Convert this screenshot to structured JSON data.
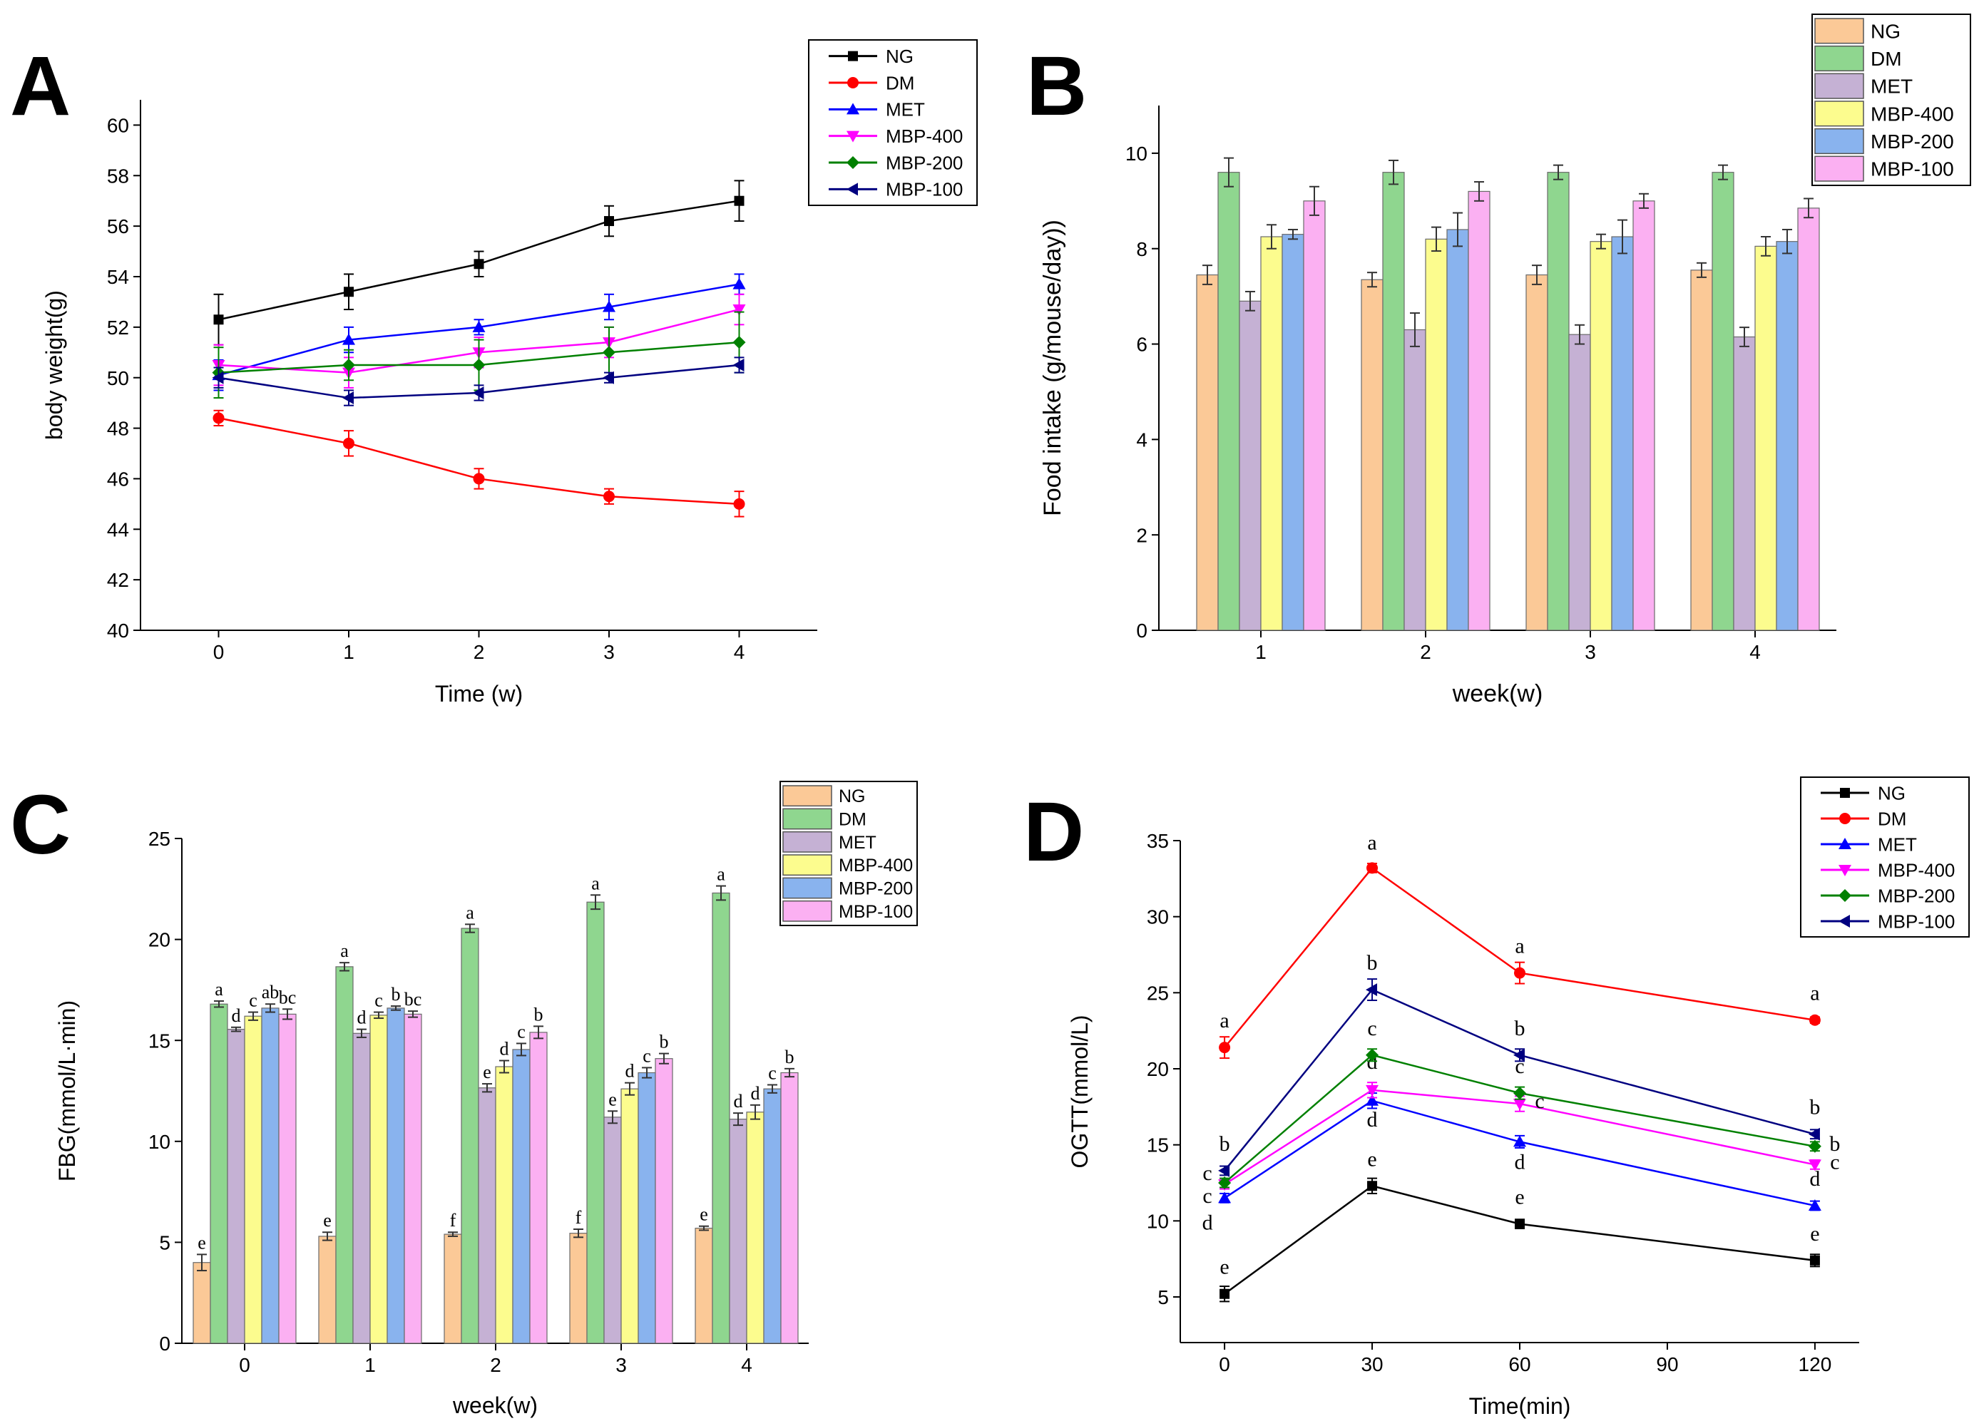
{
  "figure": {
    "panel_letters": [
      "A",
      "B",
      "C",
      "D"
    ]
  },
  "colors": {
    "line": {
      "NG": "#000000",
      "DM": "#ff0000",
      "MET": "#0000ff",
      "MBP-400": "#ff00ff",
      "MBP-200": "#008000",
      "MBP-100": "#000080"
    },
    "bar": {
      "NG": "#fbc997",
      "DM": "#8fd68f",
      "MET": "#c5b1d4",
      "MBP-400": "#fcfc8e",
      "MBP-200": "#89b3ee",
      "MBP-100": "#fbb0f2"
    }
  },
  "chart_data": [
    {
      "id": "A",
      "type": "line",
      "title": "",
      "xlabel": "Time (w)",
      "ylabel": "body weight(g)",
      "x": [
        0,
        1,
        2,
        3,
        4
      ],
      "xticks": [
        "0",
        "1",
        "2",
        "3",
        "4"
      ],
      "xlim": [
        -0.6,
        4.6
      ],
      "ylim": [
        40,
        61
      ],
      "yticks": [
        "40",
        "42",
        "44",
        "46",
        "48",
        "50",
        "52",
        "54",
        "56",
        "58",
        "60"
      ],
      "legend_position": "top-right",
      "series": [
        {
          "name": "NG",
          "marker": "square",
          "values": [
            52.3,
            53.4,
            54.5,
            56.2,
            57.0
          ],
          "errors": [
            1.0,
            0.7,
            0.5,
            0.6,
            0.8
          ]
        },
        {
          "name": "DM",
          "marker": "circle",
          "values": [
            48.4,
            47.4,
            46.0,
            45.3,
            45.0
          ],
          "errors": [
            0.3,
            0.5,
            0.4,
            0.3,
            0.5
          ]
        },
        {
          "name": "MET",
          "marker": "triangle-up",
          "values": [
            50.1,
            51.5,
            52.0,
            52.8,
            53.7
          ],
          "errors": [
            0.6,
            0.5,
            0.3,
            0.5,
            0.4
          ]
        },
        {
          "name": "MBP-400",
          "marker": "triangle-down",
          "values": [
            50.5,
            50.2,
            51.0,
            51.4,
            52.7
          ],
          "errors": [
            0.8,
            0.6,
            0.6,
            0.6,
            0.6
          ]
        },
        {
          "name": "MBP-200",
          "marker": "diamond",
          "values": [
            50.2,
            50.5,
            50.5,
            51.0,
            51.4
          ],
          "errors": [
            1.0,
            0.6,
            1.0,
            1.0,
            1.2
          ]
        },
        {
          "name": "MBP-100",
          "marker": "triangle-left",
          "values": [
            50.0,
            49.2,
            49.4,
            50.0,
            50.5
          ],
          "errors": [
            0.4,
            0.3,
            0.3,
            0.2,
            0.3
          ]
        }
      ]
    },
    {
      "id": "B",
      "type": "bar",
      "title": "",
      "xlabel": "week(w)",
      "ylabel": "Food intake (g/mouse/day))",
      "categories": [
        "1",
        "2",
        "3",
        "4"
      ],
      "ylim": [
        0,
        11
      ],
      "yticks": [
        "0",
        "2",
        "4",
        "6",
        "8",
        "10"
      ],
      "legend_position": "top-right",
      "series": [
        {
          "name": "NG",
          "values": [
            7.45,
            7.35,
            7.45,
            7.55
          ],
          "errors": [
            0.2,
            0.15,
            0.2,
            0.15
          ]
        },
        {
          "name": "DM",
          "values": [
            9.6,
            9.6,
            9.6,
            9.6
          ],
          "errors": [
            0.3,
            0.25,
            0.15,
            0.15
          ]
        },
        {
          "name": "MET",
          "values": [
            6.9,
            6.3,
            6.2,
            6.15
          ],
          "errors": [
            0.2,
            0.35,
            0.2,
            0.2
          ]
        },
        {
          "name": "MBP-400",
          "values": [
            8.25,
            8.2,
            8.15,
            8.05
          ],
          "errors": [
            0.25,
            0.25,
            0.15,
            0.2
          ]
        },
        {
          "name": "MBP-200",
          "values": [
            8.3,
            8.4,
            8.25,
            8.15
          ],
          "errors": [
            0.1,
            0.35,
            0.35,
            0.25
          ]
        },
        {
          "name": "MBP-100",
          "values": [
            9.0,
            9.2,
            9.0,
            8.85
          ],
          "errors": [
            0.3,
            0.2,
            0.15,
            0.2
          ]
        }
      ]
    },
    {
      "id": "C",
      "type": "bar",
      "title": "",
      "xlabel": "week(w)",
      "ylabel": "FBG(mmol/L·min)",
      "categories": [
        "0",
        "1",
        "2",
        "3",
        "4"
      ],
      "ylim": [
        0,
        25
      ],
      "yticks": [
        "0",
        "5",
        "10",
        "15",
        "20",
        "25"
      ],
      "legend_position": "top-right",
      "series": [
        {
          "name": "NG",
          "values": [
            4.0,
            5.3,
            5.4,
            5.45,
            5.7
          ],
          "errors": [
            0.4,
            0.2,
            0.1,
            0.2,
            0.1
          ],
          "labels": [
            "e",
            "e",
            "f",
            "f",
            "e"
          ]
        },
        {
          "name": "DM",
          "values": [
            16.8,
            18.65,
            20.55,
            21.85,
            22.3
          ],
          "errors": [
            0.15,
            0.2,
            0.2,
            0.35,
            0.35
          ],
          "labels": [
            "a",
            "a",
            "a",
            "a",
            "a"
          ]
        },
        {
          "name": "MET",
          "values": [
            15.55,
            15.35,
            12.65,
            11.2,
            11.1
          ],
          "errors": [
            0.1,
            0.2,
            0.2,
            0.3,
            0.3
          ],
          "labels": [
            "d",
            "d",
            "e",
            "e",
            "d"
          ]
        },
        {
          "name": "MBP-400",
          "values": [
            16.2,
            16.25,
            13.7,
            12.6,
            11.45
          ],
          "errors": [
            0.2,
            0.15,
            0.3,
            0.3,
            0.35
          ],
          "labels": [
            "c",
            "c",
            "d",
            "d",
            "d"
          ]
        },
        {
          "name": "MBP-200",
          "values": [
            16.6,
            16.6,
            14.55,
            13.4,
            12.6
          ],
          "errors": [
            0.2,
            0.1,
            0.3,
            0.25,
            0.2
          ],
          "labels": [
            "ab",
            "b",
            "c",
            "c",
            "c"
          ]
        },
        {
          "name": "MBP-100",
          "values": [
            16.3,
            16.3,
            15.4,
            14.1,
            13.4
          ],
          "errors": [
            0.25,
            0.15,
            0.3,
            0.25,
            0.2
          ],
          "labels": [
            "bc",
            "bc",
            "b",
            "b",
            "b"
          ]
        }
      ]
    },
    {
      "id": "D",
      "type": "line",
      "title": "",
      "xlabel": "Time(min)",
      "ylabel": "OGTT(mmol/L)",
      "x": [
        0,
        30,
        60,
        120
      ],
      "xticks": [
        "0",
        "30",
        "60",
        "90",
        "120"
      ],
      "xtick_values": [
        0,
        30,
        60,
        90,
        120
      ],
      "xlim": [
        -9,
        129
      ],
      "ylim": [
        2,
        35
      ],
      "yticks": [
        "5",
        "10",
        "15",
        "20",
        "25",
        "30",
        "35"
      ],
      "ytick_values": [
        5,
        10,
        15,
        20,
        25,
        30,
        35
      ],
      "legend_position": "top-right",
      "series": [
        {
          "name": "NG",
          "marker": "square",
          "values": [
            5.2,
            12.3,
            9.8,
            7.4
          ],
          "errors": [
            0.5,
            0.5,
            0.3,
            0.4
          ],
          "labels": [
            "e",
            "e",
            "e",
            "e"
          ]
        },
        {
          "name": "DM",
          "marker": "circle",
          "values": [
            21.4,
            33.2,
            26.3,
            23.2
          ],
          "errors": [
            0.7,
            0.3,
            0.7,
            0.2
          ],
          "labels": [
            "a",
            "a",
            "a",
            "a"
          ]
        },
        {
          "name": "MET",
          "marker": "triangle-up",
          "values": [
            11.5,
            17.9,
            15.2,
            11.0
          ],
          "errors": [
            0.3,
            0.5,
            0.4,
            0.3
          ],
          "labels": [
            "d",
            "d",
            "d",
            "d"
          ]
        },
        {
          "name": "MBP-400",
          "marker": "triangle-down",
          "values": [
            12.4,
            18.6,
            17.7,
            13.7
          ],
          "errors": [
            0.3,
            0.5,
            0.5,
            0.3
          ],
          "labels": [
            "c",
            "d",
            "c",
            "c"
          ]
        },
        {
          "name": "MBP-200",
          "marker": "diamond",
          "values": [
            12.5,
            20.9,
            18.4,
            14.9
          ],
          "errors": [
            0.3,
            0.4,
            0.4,
            0.3
          ],
          "labels": [
            "c",
            "c",
            "c",
            "b"
          ]
        },
        {
          "name": "MBP-100",
          "marker": "triangle-left",
          "values": [
            13.3,
            25.2,
            20.9,
            15.7
          ],
          "errors": [
            0.3,
            0.7,
            0.4,
            0.3
          ],
          "labels": [
            "b",
            "b",
            "b",
            "b"
          ]
        }
      ]
    }
  ]
}
